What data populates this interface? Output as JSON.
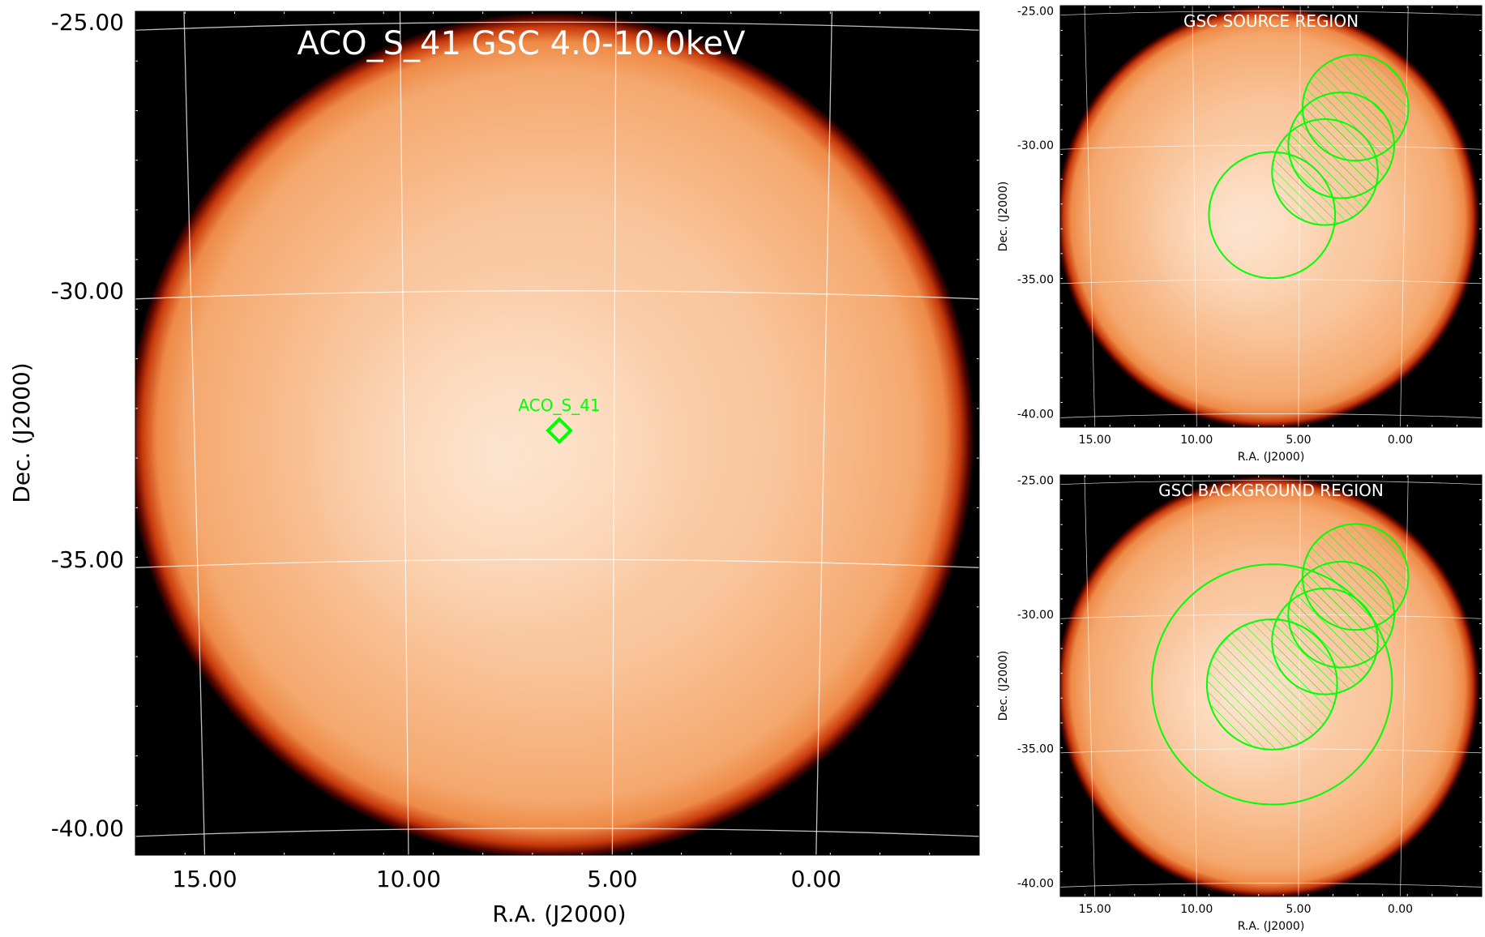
{
  "chart_data": [
    {
      "type": "heatmap",
      "title": "ACO_S_41 GSC 4.0-10.0keV",
      "xlabel": "R.A. (J2000)",
      "ylabel": "Dec. (J2000)",
      "xlim": [
        16.7,
        -4.0
      ],
      "ylim": [
        -40.5,
        -24.8
      ],
      "xticks": [
        "15.00",
        "10.00",
        "5.00",
        "0.00"
      ],
      "xtick_values": [
        15,
        10,
        5,
        0
      ],
      "yticks": [
        "-25.00",
        "-30.00",
        "-35.00",
        "-40.00"
      ],
      "ytick_values": [
        -25,
        -30,
        -35,
        -40
      ],
      "field_of_view": {
        "center_ra": 6.5,
        "center_dec": -32.7,
        "radius_deg": 10.4
      },
      "colormap": [
        "#000000",
        "#5c0700",
        "#c4320a",
        "#f08a45",
        "#f8b382",
        "#fcd7b8"
      ],
      "grid": true,
      "markers": [
        {
          "shape": "diamond",
          "ra": 6.3,
          "dec": -32.6,
          "label": "ACO_S_41",
          "color": "#00ff00"
        }
      ]
    },
    {
      "type": "heatmap",
      "title": "GSC SOURCE REGION",
      "xlabel": "R.A. (J2000)",
      "ylabel": "Dec. (J2000)",
      "xlim": [
        16.7,
        -4.0
      ],
      "ylim": [
        -40.5,
        -24.8
      ],
      "xticks": [
        "15.00",
        "10.00",
        "5.00",
        "0.00"
      ],
      "xtick_values": [
        15,
        10,
        5,
        0
      ],
      "yticks": [
        "-25.00",
        "-30.00",
        "-35.00",
        "-40.00"
      ],
      "ytick_values": [
        -25,
        -30,
        -35,
        -40
      ],
      "field_of_view": {
        "center_ra": 6.5,
        "center_dec": -32.7,
        "radius_deg": 10.4
      },
      "grid": true,
      "regions": [
        {
          "shape": "circle",
          "ra": 6.3,
          "dec": -32.6,
          "radius_deg": 3.1,
          "hatched": false,
          "color": "#00ff00"
        },
        {
          "shape": "circle",
          "ra": 3.7,
          "dec": -31.0,
          "radius_deg": 2.6,
          "hatched": true,
          "color": "#00ff00"
        },
        {
          "shape": "circle",
          "ra": 2.9,
          "dec": -30.0,
          "radius_deg": 2.6,
          "hatched": true,
          "color": "#00ff00"
        },
        {
          "shape": "circle",
          "ra": 2.2,
          "dec": -28.6,
          "radius_deg": 2.6,
          "hatched": true,
          "color": "#00ff00"
        }
      ]
    },
    {
      "type": "heatmap",
      "title": "GSC BACKGROUND REGION",
      "xlabel": "R.A. (J2000)",
      "ylabel": "Dec. (J2000)",
      "xlim": [
        16.7,
        -4.0
      ],
      "ylim": [
        -40.5,
        -24.8
      ],
      "xticks": [
        "15.00",
        "10.00",
        "5.00",
        "0.00"
      ],
      "xtick_values": [
        15,
        10,
        5,
        0
      ],
      "yticks": [
        "-25.00",
        "-30.00",
        "-35.00",
        "-40.00"
      ],
      "ytick_values": [
        -25,
        -30,
        -35,
        -40
      ],
      "field_of_view": {
        "center_ra": 6.5,
        "center_dec": -32.7,
        "radius_deg": 10.4
      },
      "grid": true,
      "regions": [
        {
          "shape": "circle",
          "ra": 6.3,
          "dec": -32.6,
          "radius_deg": 5.9,
          "hatched": false,
          "color": "#00ff00"
        },
        {
          "shape": "circle",
          "ra": 6.3,
          "dec": -32.6,
          "radius_deg": 3.2,
          "hatched": true,
          "color": "#00ff00"
        },
        {
          "shape": "circle",
          "ra": 3.7,
          "dec": -31.0,
          "radius_deg": 2.6,
          "hatched": true,
          "color": "#00ff00"
        },
        {
          "shape": "circle",
          "ra": 2.9,
          "dec": -30.0,
          "radius_deg": 2.6,
          "hatched": true,
          "color": "#00ff00"
        },
        {
          "shape": "circle",
          "ra": 2.2,
          "dec": -28.6,
          "radius_deg": 2.6,
          "hatched": true,
          "color": "#00ff00"
        }
      ]
    }
  ]
}
